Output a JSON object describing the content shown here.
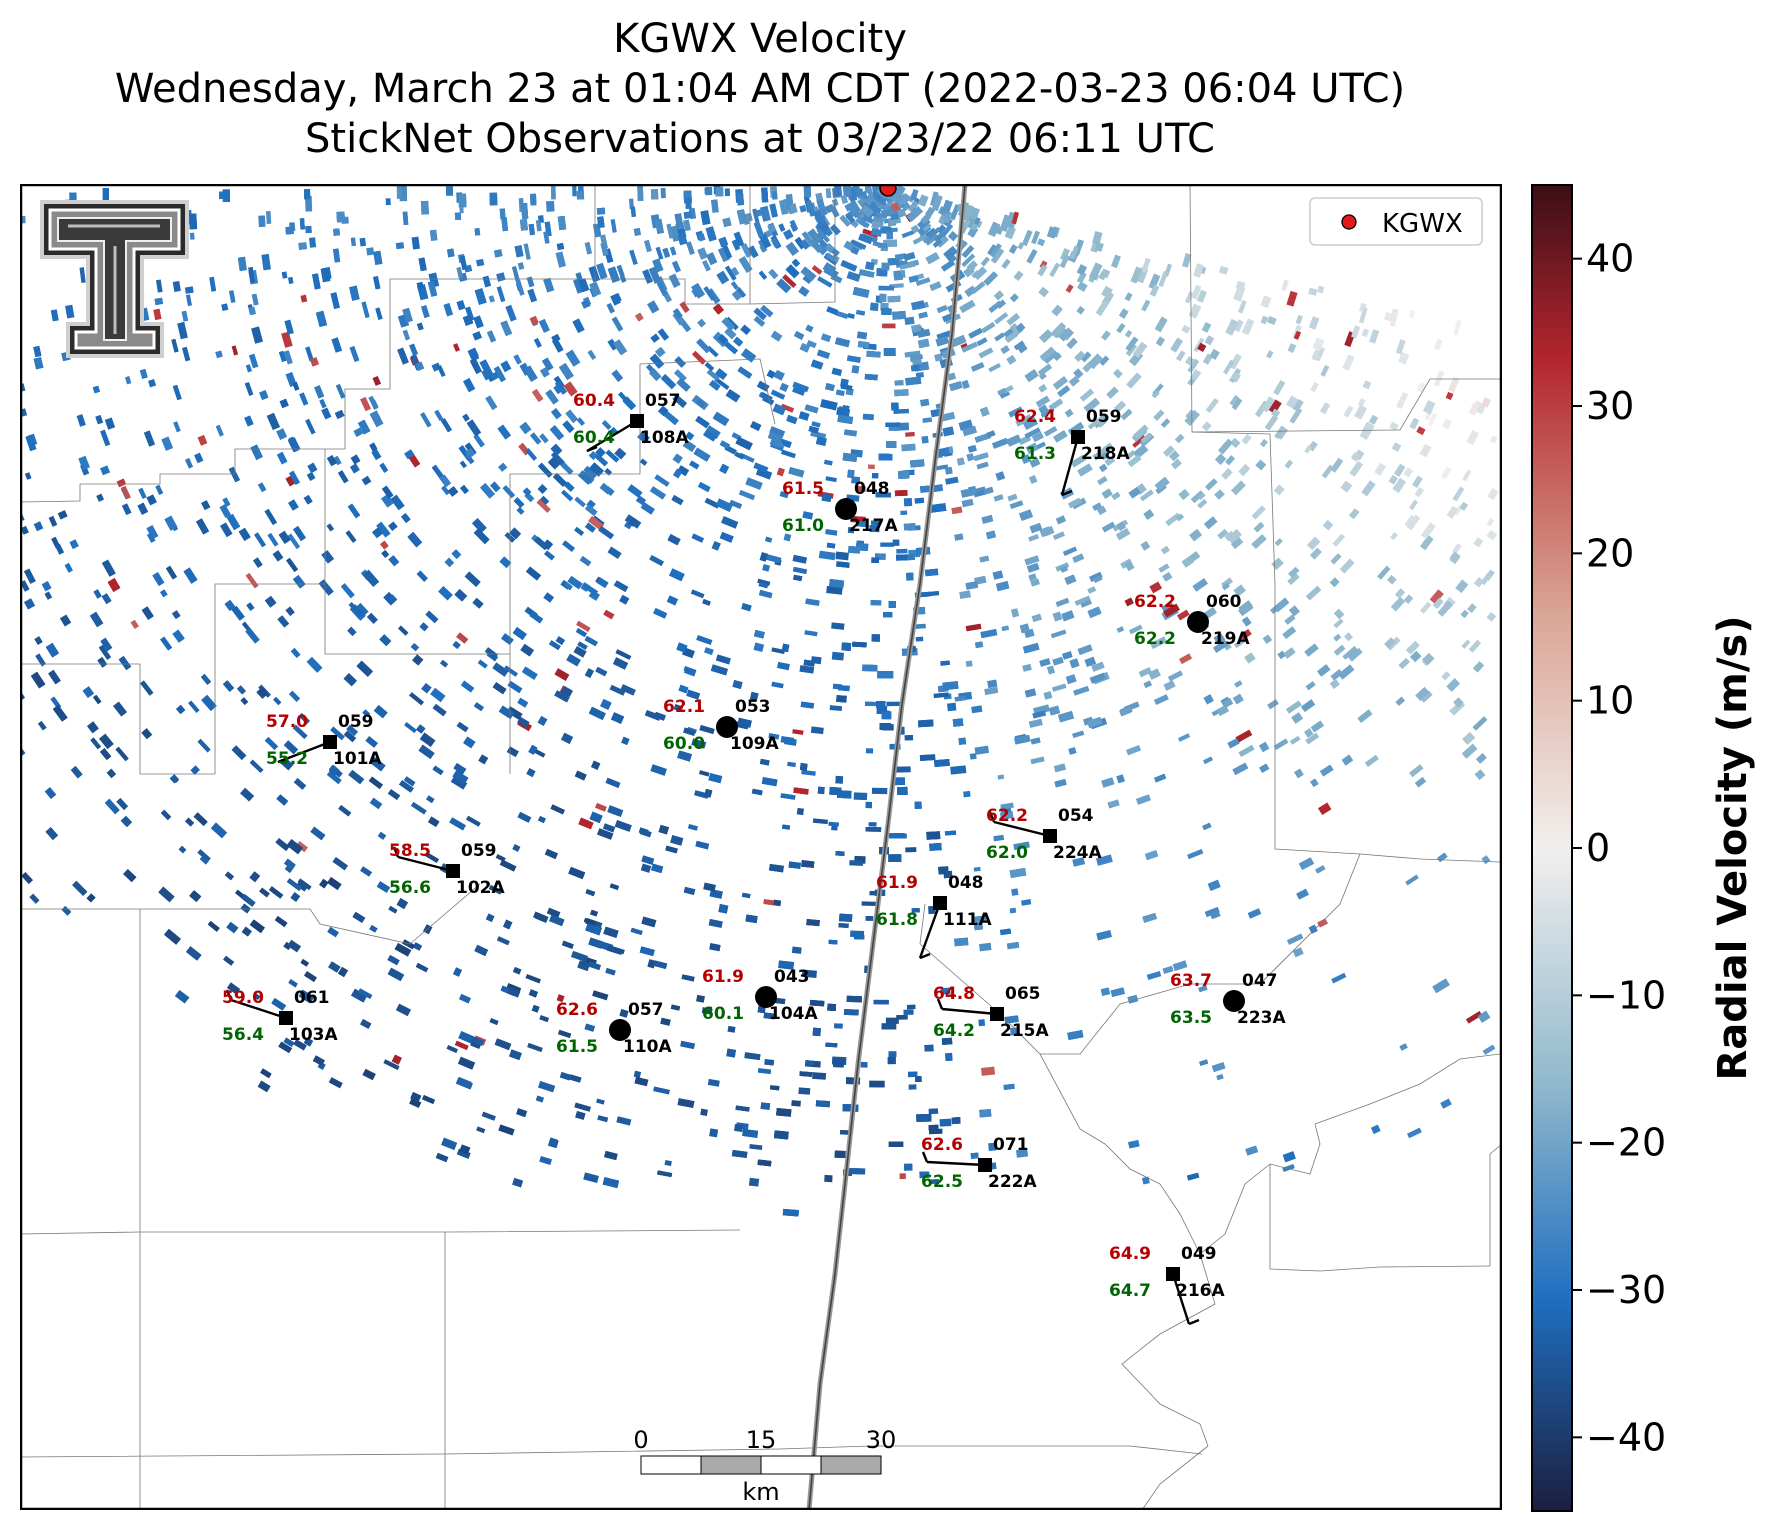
{
  "title": {
    "line1": "KGWX Velocity",
    "line2": "Wednesday, March 23 at 01:04 AM CDT (2022-03-23 06:04 UTC)",
    "line3": "StickNet Observations at 03/23/22 06:11 UTC"
  },
  "legend": {
    "label": "KGWX",
    "marker_color": "#e31a1c"
  },
  "colorbar": {
    "label": "Radial Velocity (m/s)",
    "ticks": [
      "40",
      "30",
      "20",
      "10",
      "0",
      "−10",
      "−20",
      "−30",
      "−40"
    ],
    "tick_values": [
      40,
      30,
      20,
      10,
      0,
      -10,
      -20,
      -30,
      -40
    ],
    "range": [
      -45,
      45
    ],
    "colors": {
      "low": "#1c1f3f",
      "mid_blue": "#1f6fbf",
      "light_blue": "#8fb8cc",
      "zero": "#f2efee",
      "light_red": "#d9a493",
      "red": "#b3252e",
      "high": "#3b0f17"
    }
  },
  "scale_bar": {
    "ticks": [
      "0",
      "15",
      "30"
    ],
    "unit": "km"
  },
  "stations": [
    {
      "id": "108A",
      "dir": "057",
      "temp": "60.4",
      "dew": "60.4",
      "marker": "square"
    },
    {
      "id": "218A",
      "dir": "059",
      "temp": "62.4",
      "dew": "61.3",
      "marker": "square"
    },
    {
      "id": "217A",
      "dir": "048",
      "temp": "61.5",
      "dew": "61.0",
      "marker": "circle"
    },
    {
      "id": "219A",
      "dir": "060",
      "temp": "62.2",
      "dew": "62.2",
      "marker": "circle"
    },
    {
      "id": "101A",
      "dir": "059",
      "temp": "57.0",
      "dew": "55.2",
      "marker": "square"
    },
    {
      "id": "109A",
      "dir": "053",
      "temp": "62.1",
      "dew": "60.0",
      "marker": "circle"
    },
    {
      "id": "224A",
      "dir": "054",
      "temp": "62.2",
      "dew": "62.0",
      "marker": "square"
    },
    {
      "id": "102A",
      "dir": "059",
      "temp": "58.5",
      "dew": "56.6",
      "marker": "square"
    },
    {
      "id": "111A",
      "dir": "048",
      "temp": "61.9",
      "dew": "61.8",
      "marker": "square"
    },
    {
      "id": "103A",
      "dir": "061",
      "temp": "59.0",
      "dew": "56.4",
      "marker": "square"
    },
    {
      "id": "104A",
      "dir": "043",
      "temp": "61.9",
      "dew": "60.1",
      "marker": "circle"
    },
    {
      "id": "110A",
      "dir": "057",
      "temp": "62.6",
      "dew": "61.5",
      "marker": "circle"
    },
    {
      "id": "215A",
      "dir": "065",
      "temp": "64.8",
      "dew": "64.2",
      "marker": "square"
    },
    {
      "id": "223A",
      "dir": "047",
      "temp": "63.7",
      "dew": "63.5",
      "marker": "circle"
    },
    {
      "id": "222A",
      "dir": "071",
      "temp": "62.6",
      "dew": "62.5",
      "marker": "square"
    },
    {
      "id": "216A",
      "dir": "049",
      "temp": "64.9",
      "dew": "64.7",
      "marker": "square"
    }
  ],
  "colors": {
    "temp": "#b30000",
    "dew": "#006400",
    "station": "#000000"
  }
}
